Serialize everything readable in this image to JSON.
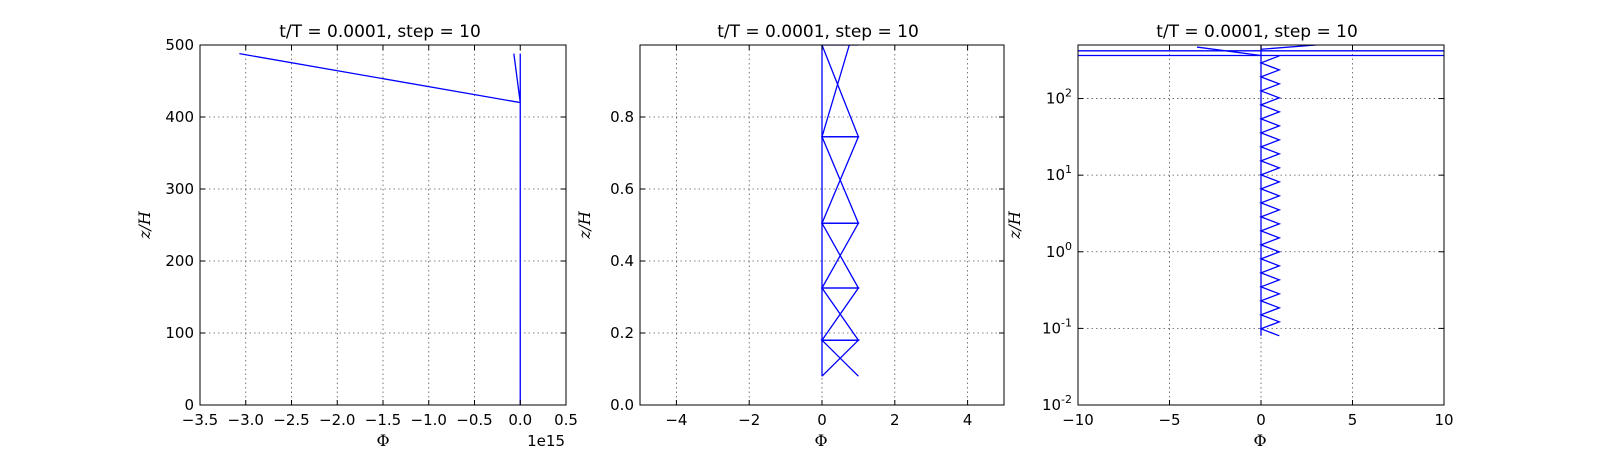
{
  "chart_data": [
    {
      "type": "line",
      "title": "t/T = 0.0001, step = 10",
      "xlabel": "Φ",
      "ylabel": "z/H",
      "x_offset_label": "1e15",
      "xlim": [
        -3.5,
        0.5
      ],
      "ylim": [
        0,
        500
      ],
      "x_ticks": [
        -3.5,
        -3.0,
        -2.5,
        -2.0,
        -1.5,
        -1.0,
        -0.5,
        0.0,
        0.5
      ],
      "x_tick_labels": [
        "−3.5",
        "−3.0",
        "−2.5",
        "−2.0",
        "−1.5",
        "−1.0",
        "−0.5",
        "0.0",
        "0.5"
      ],
      "y_ticks": [
        0,
        100,
        200,
        300,
        400,
        500
      ],
      "y_tick_labels": [
        "0",
        "100",
        "200",
        "300",
        "400",
        "500"
      ],
      "grid": true,
      "series": [
        {
          "color": "#0000ff",
          "x": [
            0,
            0,
            -3.07,
            0,
            -0.07,
            0,
            0
          ],
          "y": [
            0.08,
            420,
            488,
            420,
            488,
            420,
            488
          ]
        }
      ]
    },
    {
      "type": "line",
      "title": "t/T = 0.0001, step = 10",
      "xlabel": "Φ",
      "ylabel": "z/H",
      "xlim": [
        -5,
        5
      ],
      "ylim": [
        0,
        1
      ],
      "x_ticks": [
        -4,
        -2,
        0,
        2,
        4
      ],
      "x_tick_labels": [
        "−4",
        "−2",
        "0",
        "2",
        "4"
      ],
      "y_ticks": [
        0,
        0.2,
        0.4,
        0.6,
        0.8
      ],
      "y_tick_labels": [
        "0.0",
        "0.2",
        "0.4",
        "0.6",
        "0.8"
      ],
      "grid": true,
      "series": [
        {
          "color": "#0000ff",
          "x": [
            0,
            0
          ],
          "y": [
            0.08,
            1.0
          ]
        },
        {
          "color": "#0000ff",
          "x": [
            1,
            0,
            1,
            0,
            1,
            0,
            1,
            0,
            1,
            0,
            1,
            0,
            0.75
          ],
          "y": [
            0.08,
            0.18,
            0.18,
            0.325,
            0.325,
            0.505,
            0.505,
            0.745,
            0.745,
            1.0,
            1.0,
            1.0,
            1.0
          ]
        },
        {
          "color": "#0000ff",
          "x": [
            0,
            1,
            0,
            1,
            0,
            1,
            0,
            1,
            0,
            0.75
          ],
          "y": [
            0.08,
            0.18,
            0.18,
            0.325,
            0.325,
            0.505,
            0.505,
            0.745,
            0.745,
            1.0
          ]
        }
      ]
    },
    {
      "type": "line",
      "title": "t/T = 0.0001, step = 10",
      "xlabel": "Φ",
      "ylabel": "z/H",
      "xlim": [
        -10,
        10
      ],
      "ylim": [
        0.01,
        500
      ],
      "y_scale": "log",
      "x_ticks": [
        -10,
        -5,
        0,
        5,
        10
      ],
      "x_tick_labels": [
        "−10",
        "−5",
        "0",
        "5",
        "10"
      ],
      "y_ticks": [
        0.01,
        0.1,
        1,
        10,
        100
      ],
      "y_tick_labels": [
        {
          "base": "10",
          "exp": "-2"
        },
        {
          "base": "10",
          "exp": "-1"
        },
        {
          "base": "10",
          "exp": "0"
        },
        {
          "base": "10",
          "exp": "1"
        },
        {
          "base": "10",
          "exp": "2"
        }
      ],
      "grid": true,
      "series": [
        {
          "color": "#0000ff",
          "x": [
            0,
            0
          ],
          "y": [
            0.08,
            500
          ]
        },
        {
          "color": "#0000ff",
          "x": [
            -10,
            10
          ],
          "y": [
            420,
            420
          ]
        },
        {
          "color": "#0000ff",
          "x": [
            -10,
            10
          ],
          "y": [
            365,
            365
          ]
        },
        {
          "color": "#0000ff",
          "x": [
            -3.5,
            0
          ],
          "y": [
            470,
            365
          ]
        },
        {
          "color": "#0000ff",
          "x": [
            0,
            3
          ],
          "y": [
            440,
            500
          ]
        }
      ],
      "zigzag": {
        "x_low": 0,
        "x_high": 1,
        "y_from": 0.08,
        "y_to": 360,
        "count": 40
      }
    }
  ]
}
